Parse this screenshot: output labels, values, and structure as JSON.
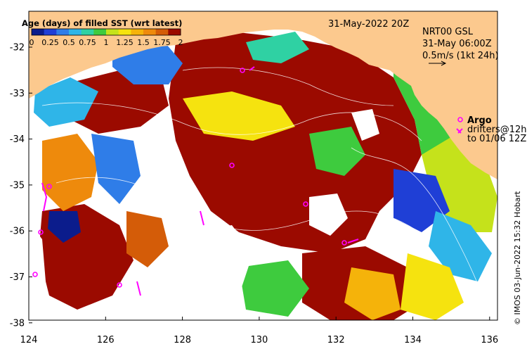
{
  "map": {
    "timestamp": "31-May-2022 20Z",
    "colorbar": {
      "title": "Age (days) of filled SST (wrt latest)",
      "ticks": [
        "0",
        "0.25",
        "0.5",
        "0.75",
        "1",
        "1.25",
        "1.5",
        "1.75",
        "2"
      ],
      "colors": [
        "#0b1c8c",
        "#1f3fd6",
        "#2f7de8",
        "#2fb5e8",
        "#2fd1a3",
        "#3ecb3e",
        "#c5e21b",
        "#f5e30f",
        "#f5b30a",
        "#ee8a0c",
        "#d45c08",
        "#9b0a00"
      ]
    },
    "legend": {
      "gsl_title": "NRT00 GSL",
      "gsl_time": "31-May 06:00Z",
      "vector_scale": "0.5m/s (1kt 24h)",
      "argo_label": "Argo",
      "drifters_line1": "drifters@12h",
      "drifters_line2": "to 01/06 12Z"
    },
    "credit": "© IMOS 03-Jun-2022 15:32 Hobart",
    "x_ticks": [
      "124",
      "126",
      "128",
      "130",
      "132",
      "134",
      "136"
    ],
    "y_ticks": [
      "-32",
      "-33",
      "-34",
      "-35",
      "-36",
      "-37",
      "-38"
    ],
    "colors": {
      "land": "#fcc98e",
      "frame": "#000000",
      "old_sst": "#9b0a00",
      "argo_marker": "#ff00ff"
    }
  }
}
